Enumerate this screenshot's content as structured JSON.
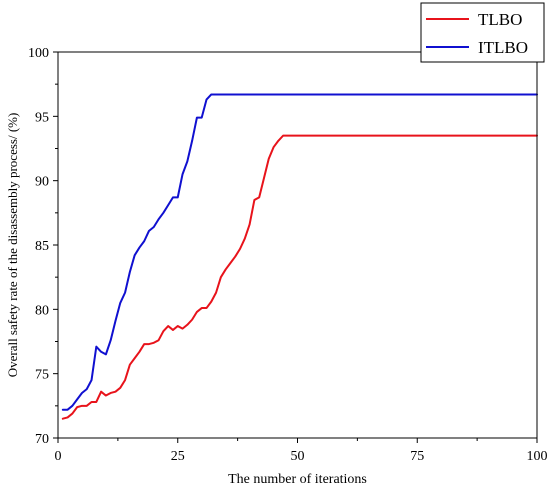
{
  "chart_data": {
    "type": "line",
    "xlabel": "The number of iterations",
    "ylabel": "Overall safety rate of the disassembly process/ (%)",
    "xlim": [
      0,
      100
    ],
    "ylim": [
      70,
      100
    ],
    "xticks": [
      0,
      25,
      50,
      75,
      100
    ],
    "yticks": [
      70,
      75,
      80,
      85,
      90,
      95,
      100
    ],
    "grid": false,
    "legend_position": "top-right",
    "series": [
      {
        "name": "TLBO",
        "color": "#e8131b",
        "x": [
          1,
          2,
          3,
          4,
          5,
          6,
          7,
          8,
          9,
          10,
          11,
          12,
          13,
          14,
          15,
          16,
          17,
          18,
          19,
          20,
          21,
          22,
          23,
          24,
          25,
          26,
          27,
          28,
          29,
          30,
          31,
          32,
          33,
          34,
          35,
          36,
          37,
          38,
          39,
          40,
          41,
          42,
          43,
          44,
          45,
          46,
          47,
          48,
          100
        ],
        "y": [
          71.5,
          71.6,
          71.9,
          72.4,
          72.5,
          72.5,
          72.8,
          72.8,
          73.6,
          73.3,
          73.5,
          73.6,
          73.9,
          74.5,
          75.7,
          76.2,
          76.7,
          77.3,
          77.3,
          77.4,
          77.6,
          78.3,
          78.7,
          78.4,
          78.7,
          78.5,
          78.8,
          79.2,
          79.8,
          80.1,
          80.1,
          80.6,
          81.3,
          82.5,
          83.1,
          83.6,
          84.1,
          84.7,
          85.5,
          86.6,
          88.5,
          88.7,
          90.2,
          91.7,
          92.6,
          93.1,
          93.5,
          93.5,
          93.5
        ]
      },
      {
        "name": "ITLBO",
        "color": "#1010d0",
        "x": [
          1,
          2,
          3,
          4,
          5,
          6,
          7,
          8,
          9,
          10,
          11,
          12,
          13,
          14,
          15,
          16,
          17,
          18,
          19,
          20,
          21,
          22,
          23,
          24,
          25,
          26,
          27,
          28,
          29,
          30,
          31,
          32,
          33,
          100
        ],
        "y": [
          72.2,
          72.2,
          72.5,
          73.0,
          73.5,
          73.8,
          74.5,
          77.1,
          76.7,
          76.5,
          77.6,
          79.1,
          80.5,
          81.3,
          82.9,
          84.2,
          84.8,
          85.3,
          86.1,
          86.4,
          87.0,
          87.5,
          88.1,
          88.7,
          88.7,
          90.5,
          91.5,
          93.1,
          94.9,
          94.9,
          96.3,
          96.7,
          96.7,
          96.7
        ]
      }
    ]
  }
}
